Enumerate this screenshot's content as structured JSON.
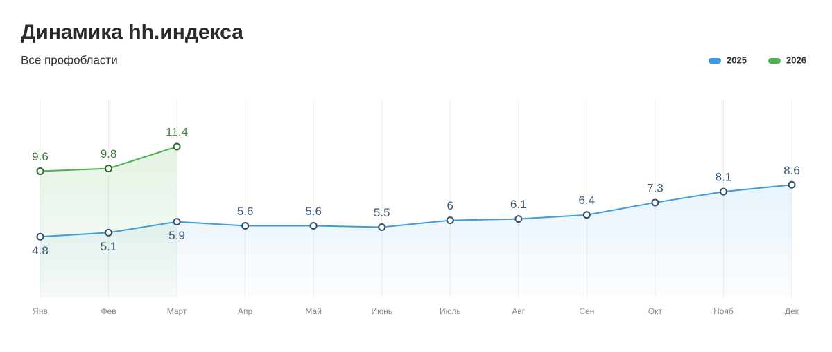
{
  "chart_data": {
    "type": "line",
    "title": "Динамика hh.индекса",
    "subtitle": "Все профобласти",
    "categories": [
      "Янв",
      "Фев",
      "Март",
      "Апр",
      "Май",
      "Июнь",
      "Июль",
      "Авг",
      "Сен",
      "Окт",
      "Нояб",
      "Дек"
    ],
    "series": [
      {
        "name": "2025",
        "color": "#3d9be0",
        "values": [
          4.8,
          5.1,
          5.9,
          5.6,
          5.6,
          5.5,
          6,
          6.1,
          6.4,
          7.3,
          8.1,
          8.6
        ]
      },
      {
        "name": "2026",
        "color": "#4caf50",
        "values": [
          9.6,
          9.8,
          11.4,
          null,
          null,
          null,
          null,
          null,
          null,
          null,
          null,
          null
        ]
      }
    ],
    "ylim": [
      0,
      15
    ],
    "grid": true,
    "legend": "top-right"
  }
}
